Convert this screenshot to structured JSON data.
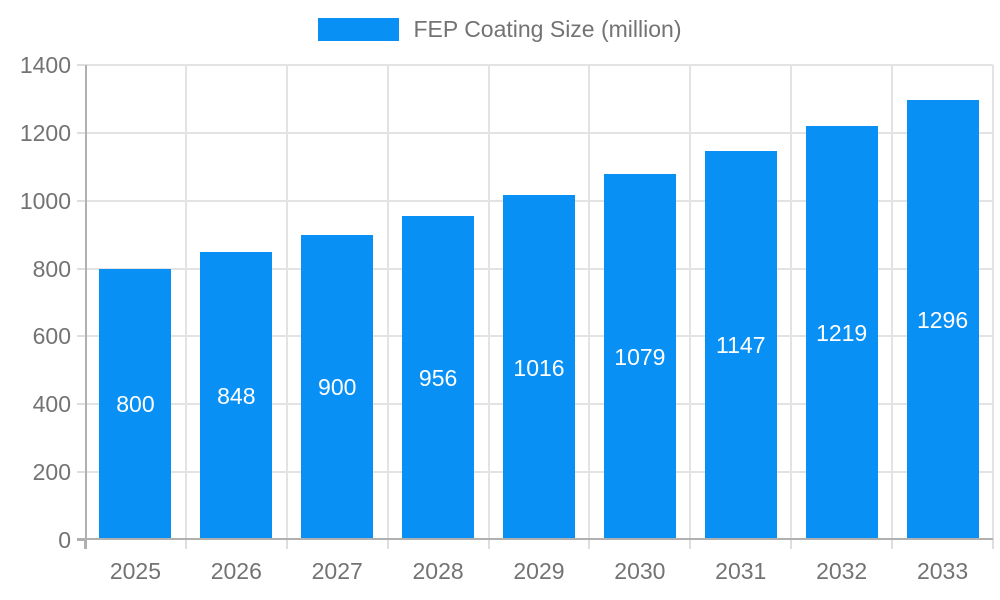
{
  "legend": {
    "label": "FEP Coating Size (million)"
  },
  "colors": {
    "bar": "#0990f5",
    "bar_label_text": "#ffffff",
    "grid": "#e3e3e3",
    "axis": "#b0b0b0",
    "tick": "#dedede",
    "text": "#737373"
  },
  "chart_data": {
    "type": "bar",
    "title": "FEP Coating Size (million)",
    "categories": [
      "2025",
      "2026",
      "2027",
      "2028",
      "2029",
      "2030",
      "2031",
      "2032",
      "2033"
    ],
    "values": [
      800,
      848,
      900,
      956,
      1016,
      1079,
      1147,
      1219,
      1296
    ],
    "series_name": "FEP Coating Size (million)",
    "xlabel": "",
    "ylabel": "",
    "ylim": [
      0,
      1400
    ],
    "ytick_step": 200,
    "ytick_labels": [
      "0",
      "200",
      "400",
      "600",
      "800",
      "1000",
      "1200",
      "1400"
    ],
    "grid": true,
    "legend_position": "top-center",
    "data_labels": "inside-middle"
  }
}
